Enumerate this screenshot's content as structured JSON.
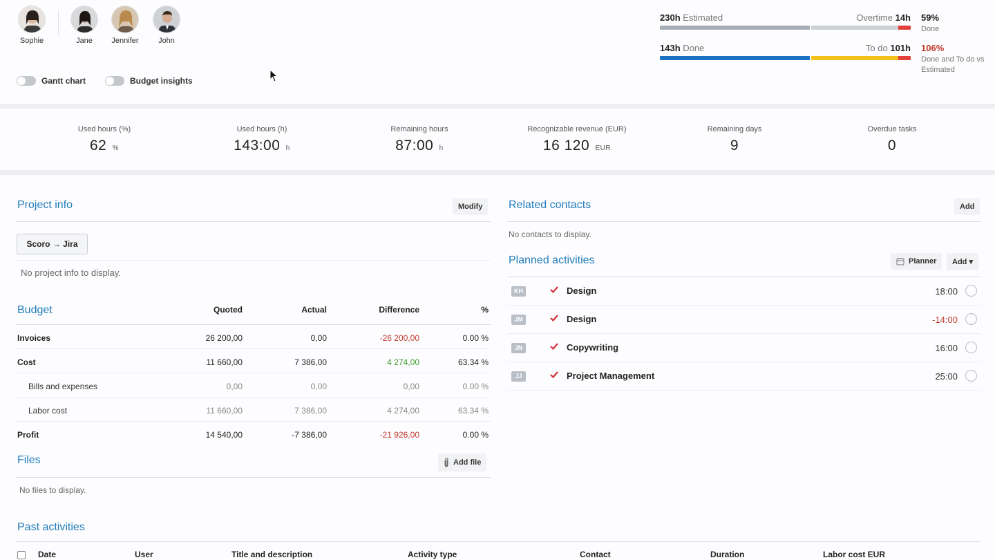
{
  "team": {
    "members": [
      {
        "name": "Sophie"
      },
      {
        "name": "Jane"
      },
      {
        "name": "Jennifer"
      },
      {
        "name": "John"
      }
    ]
  },
  "toggles": {
    "gantt_label": "Gantt chart",
    "budget_label": "Budget insights"
  },
  "summary": {
    "estimated_value": "230h",
    "estimated_label": "Estimated",
    "overtime_label": "Overtime",
    "overtime_value": "14h",
    "estimated_pct": "59%",
    "estimated_pct_note": "Done",
    "done_value": "143h",
    "done_label": "Done",
    "todo_label": "To do",
    "todo_value": "101h",
    "done_pct": "106%",
    "done_pct_note": "Done and To do vs Estimated",
    "colors": {
      "grey_dark": "#a7adb5",
      "grey_light": "#cdd1d6",
      "red": "#e2403a",
      "blue": "#1b72c4",
      "yellow": "#f1c21b"
    }
  },
  "kpis": [
    {
      "label": "Used hours (%)",
      "value": "62",
      "unit": "%"
    },
    {
      "label": "Used hours (h)",
      "value": "143:00",
      "unit": "h"
    },
    {
      "label": "Remaining hours",
      "value": "87:00",
      "unit": "h"
    },
    {
      "label": "Recognizable revenue (EUR)",
      "value": "16 120",
      "unit": "EUR"
    },
    {
      "label": "Remaining days",
      "value": "9",
      "unit": ""
    },
    {
      "label": "Overdue tasks",
      "value": "0",
      "unit": ""
    }
  ],
  "project_info": {
    "title": "Project info",
    "modify_label": "Modify",
    "integration_label": "Scoro → Jira",
    "empty_text": "No project info to display."
  },
  "budget": {
    "title": "Budget",
    "headers": {
      "quoted": "Quoted",
      "actual": "Actual",
      "difference": "Difference",
      "percent": "%"
    },
    "rows": [
      {
        "name": "Invoices",
        "quoted": "26 200,00",
        "actual": "0,00",
        "difference": "-26 200,00",
        "percent": "0.00 %"
      },
      {
        "name": "Cost",
        "quoted": "11 660,00",
        "actual": "7 386,00",
        "difference": "4 274,00",
        "percent": "63.34 %"
      },
      {
        "name": "Bills and expenses",
        "quoted": "0,00",
        "actual": "0,00",
        "difference": "0,00",
        "percent": "0.00 %"
      },
      {
        "name": "Labor cost",
        "quoted": "11 660,00",
        "actual": "7 386,00",
        "difference": "4 274,00",
        "percent": "63.34 %"
      },
      {
        "name": "Profit",
        "quoted": "14 540,00",
        "actual": "-7 386,00",
        "difference": "-21 926,00",
        "percent": "0.00 %"
      }
    ],
    "colors": {
      "negative": "#c0392b",
      "positive": "#3f9b2e"
    }
  },
  "files": {
    "title": "Files",
    "add_label": "Add file",
    "empty_text": "No files to display."
  },
  "related_contacts": {
    "title": "Related contacts",
    "add_label": "Add",
    "empty_text": "No contacts to display."
  },
  "planned_activities": {
    "title": "Planned activities",
    "planner_label": "Planner",
    "add_label": "Add ▾",
    "items": [
      {
        "initials": "KH",
        "title": "Design",
        "time": "18:00"
      },
      {
        "initials": "JM",
        "title": "Design",
        "time": "-14:00"
      },
      {
        "initials": "JN",
        "title": "Copywriting",
        "time": "16:00"
      },
      {
        "initials": "JJ",
        "title": "Project Management",
        "time": "25:00"
      }
    ]
  },
  "past_activities": {
    "title": "Past activities",
    "columns": [
      "Date",
      "User",
      "Title and description",
      "Activity type",
      "Contact",
      "Duration",
      "Labor cost EUR"
    ]
  }
}
